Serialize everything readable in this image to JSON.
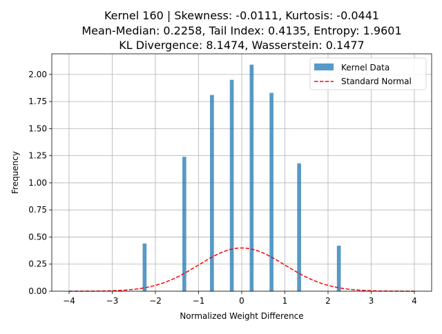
{
  "chart_data": {
    "type": "bar",
    "title_lines": [
      "Kernel 160 | Skewness: -0.0111, Kurtosis: -0.0441",
      "Mean-Median: 0.2258, Tail Index: 0.4135, Entropy: 1.9601",
      "KL Divergence: 8.1474, Wasserstein: 0.1477"
    ],
    "xlabel": "Normalized Weight Difference",
    "ylabel": "Frequency",
    "xlim": [
      -4.4,
      4.4
    ],
    "ylim": [
      0,
      2.19
    ],
    "xticks": [
      -4,
      -3,
      -2,
      -1,
      0,
      1,
      2,
      3,
      4
    ],
    "xtick_labels": [
      "−4",
      "−3",
      "−2",
      "−1",
      "0",
      "1",
      "2",
      "3",
      "4"
    ],
    "yticks": [
      0,
      0.25,
      0.5,
      0.75,
      1.0,
      1.25,
      1.5,
      1.75,
      2.0
    ],
    "ytick_labels": [
      "0.00",
      "0.25",
      "0.50",
      "0.75",
      "1.00",
      "1.25",
      "1.50",
      "1.75",
      "2.00"
    ],
    "grid": true,
    "legend_position": "top-right",
    "series": [
      {
        "name": "Kernel Data",
        "type": "bar",
        "color": "#1f77b4",
        "bin_width": 0.09,
        "x": [
          -2.25,
          -1.33,
          -0.69,
          -0.23,
          0.23,
          0.69,
          1.33,
          2.25
        ],
        "values": [
          0.44,
          1.24,
          1.81,
          1.95,
          2.09,
          1.83,
          1.18,
          0.42
        ]
      },
      {
        "name": "Standard Normal",
        "type": "line",
        "color": "#ff0000",
        "style": "dashed",
        "function": "standard_normal_pdf",
        "x_range": [
          -4,
          4
        ]
      }
    ]
  }
}
